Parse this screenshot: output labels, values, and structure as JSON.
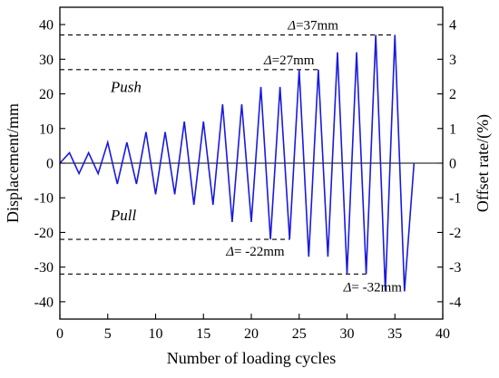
{
  "chart_data": {
    "type": "line",
    "xlabel": "Number of loading cycles",
    "ylabel": "Displacement/mm",
    "y2label": "Offset rate/(%)",
    "xlim": [
      0,
      40
    ],
    "ylim": [
      -45,
      45
    ],
    "y2lim": [
      -4.5,
      4.5
    ],
    "xticks": [
      0,
      5,
      10,
      15,
      20,
      25,
      30,
      35,
      40
    ],
    "yticks": [
      -40,
      -30,
      -20,
      -10,
      0,
      10,
      20,
      30,
      40
    ],
    "y2ticks": [
      -4,
      -3,
      -2,
      -1,
      0,
      1,
      2,
      3,
      4
    ],
    "grid": false,
    "series": [
      {
        "color": "#1a1adf",
        "x": [
          0,
          1,
          2,
          3,
          4,
          5,
          6,
          7,
          8,
          9,
          10,
          11,
          12,
          13,
          14,
          15,
          16,
          17,
          18,
          19,
          20,
          21,
          22,
          23,
          24,
          25,
          26,
          27,
          28,
          29,
          30,
          31,
          32,
          33,
          34,
          35,
          36,
          37
        ],
        "y": [
          0,
          3,
          -3,
          3,
          -3,
          6,
          -6,
          6,
          -6,
          9,
          -9,
          9,
          -9,
          12,
          -12,
          12,
          -12,
          17,
          -17,
          17,
          -17,
          22,
          -22,
          22,
          -22,
          27,
          -27,
          27,
          -27,
          32,
          -32,
          32,
          -32,
          37,
          -37,
          37,
          -37,
          0
        ]
      }
    ],
    "reference_lines": [
      {
        "y": 37,
        "x_end": 35,
        "label": "=37mm"
      },
      {
        "y": 27,
        "x_end": 27,
        "label": "=27mm"
      },
      {
        "y": -22,
        "x_end": 24,
        "label": "= -22mm"
      },
      {
        "y": -32,
        "x_end": 32,
        "label": "= -32mm"
      }
    ],
    "delta_symbol": "Δ",
    "region_labels": {
      "push": "Push",
      "pull": "Pull"
    }
  }
}
